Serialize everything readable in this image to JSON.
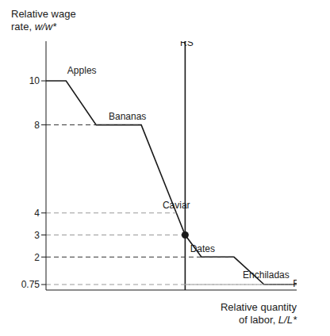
{
  "chart_data": {
    "type": "line",
    "xlabel": [
      "Relative quantity",
      "of labor, L/L*"
    ],
    "ylabel": [
      "Relative wage",
      "rate, w/w*"
    ],
    "xlim": [
      0,
      10
    ],
    "ylim": [
      0.5,
      11.8
    ],
    "yticks": [
      0.75,
      2,
      3,
      4,
      8,
      10
    ],
    "tick_labels": "y",
    "grid": false,
    "series": [
      {
        "x": [
          0.0,
          0.8,
          2.0,
          3.8,
          5.2,
          5.55,
          6.2,
          7.5,
          8.7,
          10.0
        ],
        "values": [
          10,
          10,
          8,
          8,
          4,
          3,
          2,
          2,
          0.75,
          0.75
        ],
        "color": "#1a1a1a",
        "line_style": "solid"
      },
      {
        "x": [
          5.55,
          5.55
        ],
        "values": [
          0.5,
          11.8
        ],
        "color": "#1a1a1a",
        "line_style": "solid"
      },
      {
        "x": [
          5.55,
          10.0
        ],
        "values": [
          0.75,
          0.75
        ],
        "color": "#999999",
        "line_style": "dashed"
      },
      {
        "x": [
          0.0,
          3.8
        ],
        "values": [
          8,
          8
        ],
        "color": "#333333",
        "line_style": "dashed"
      },
      {
        "x": [
          0.0,
          7.5
        ],
        "values": [
          2,
          2
        ],
        "color": "#333333",
        "line_style": "dashed"
      },
      {
        "x": [
          0.0,
          5.2
        ],
        "values": [
          4,
          4
        ],
        "color": "#999999",
        "line_style": "dashed"
      },
      {
        "x": [
          0.0,
          5.55
        ],
        "values": [
          3,
          3
        ],
        "color": "#999999",
        "line_style": "dashed"
      },
      {
        "x": [
          0.0,
          10.0
        ],
        "values": [
          0.75,
          0.75
        ],
        "color": "#999999",
        "line_style": "dashed"
      },
      {
        "type": "scatter",
        "x": [
          5.55
        ],
        "values": [
          3.0
        ],
        "color": "#1a1a1a"
      }
    ],
    "annotations": [
      {
        "text": "Apples",
        "x": 0.85,
        "y": 10.25
      },
      {
        "text": "Bananas",
        "x": 2.5,
        "y": 8.15
      },
      {
        "text": "Caviar",
        "x": 4.65,
        "y": 4.15
      },
      {
        "text": "Dates",
        "x": 5.75,
        "y": 2.15
      },
      {
        "text": "Enchiladas",
        "x": 7.85,
        "y": 0.95
      },
      {
        "text": "RS",
        "x": 5.35,
        "y": 11.5
      },
      {
        "text": "RD",
        "x": 9.85,
        "y": 0.58
      }
    ]
  }
}
